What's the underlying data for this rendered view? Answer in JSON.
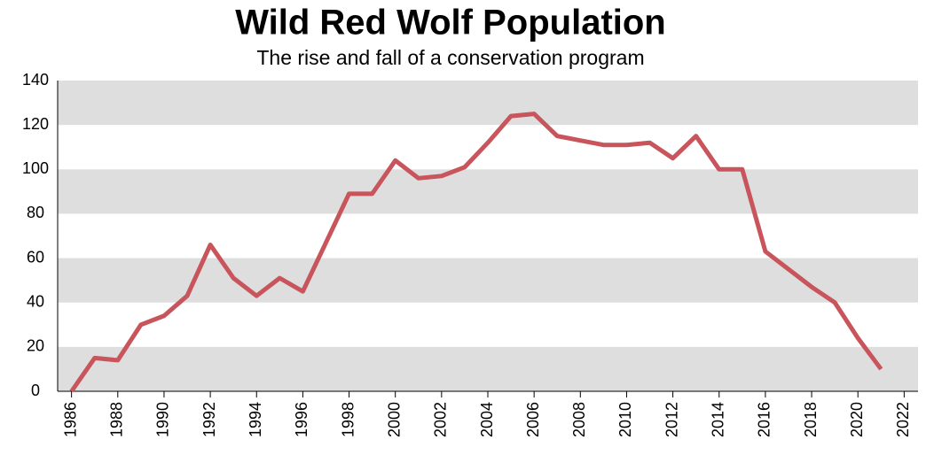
{
  "chart_data": {
    "type": "line",
    "title": "Wild Red Wolf Population",
    "subtitle": "The rise and fall of a conservation program",
    "x": [
      1986,
      1987,
      1988,
      1989,
      1990,
      1991,
      1992,
      1993,
      1994,
      1995,
      1996,
      1997,
      1998,
      1999,
      2000,
      2001,
      2002,
      2003,
      2004,
      2005,
      2006,
      2007,
      2008,
      2009,
      2010,
      2011,
      2012,
      2013,
      2014,
      2015,
      2016,
      2017,
      2018,
      2019,
      2020,
      2021
    ],
    "values": [
      0,
      15,
      14,
      30,
      34,
      43,
      66,
      51,
      43,
      51,
      45,
      67,
      89,
      89,
      104,
      96,
      97,
      101,
      112,
      124,
      125,
      115,
      113,
      111,
      111,
      112,
      105,
      115,
      100,
      100,
      63,
      55,
      47,
      40,
      24,
      10
    ],
    "color": "#c8545c",
    "xlim": [
      1985.4,
      2022.6
    ],
    "xticks": [
      1986,
      1988,
      1990,
      1992,
      1994,
      1996,
      1998,
      2000,
      2002,
      2004,
      2006,
      2008,
      2010,
      2012,
      2014,
      2016,
      2018,
      2020,
      2022
    ],
    "ylim": [
      0,
      140
    ],
    "yticks": [
      0,
      20,
      40,
      60,
      80,
      100,
      120,
      140
    ],
    "grid": "bands",
    "band_color": "#dedede"
  }
}
